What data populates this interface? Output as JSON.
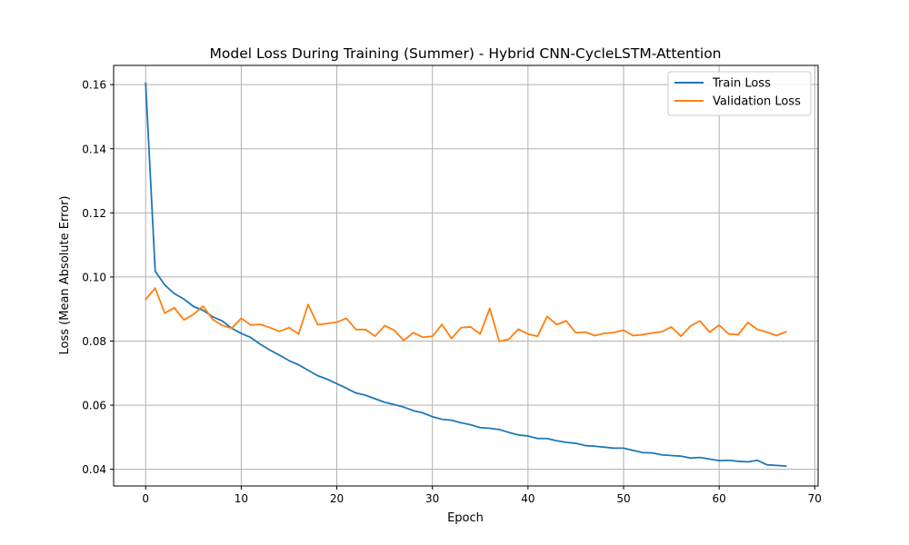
{
  "chart_data": {
    "type": "line",
    "title": "Model Loss During Training (Summer) - Hybrid CNN-CycleLSTM-Attention",
    "xlabel": "Epoch",
    "ylabel": "Loss (Mean Absolute Error)",
    "xlim": [
      -3.35,
      70.35
    ],
    "ylim": [
      0.0348,
      0.166
    ],
    "xticks": [
      0,
      10,
      20,
      30,
      40,
      50,
      60,
      70
    ],
    "xtick_labels": [
      "0",
      "10",
      "20",
      "30",
      "40",
      "50",
      "60",
      "70"
    ],
    "yticks": [
      0.04,
      0.06,
      0.08,
      0.1,
      0.12,
      0.14,
      0.16
    ],
    "ytick_labels": [
      "0.04",
      "0.06",
      "0.08",
      "0.10",
      "0.12",
      "0.14",
      "0.16"
    ],
    "grid": true,
    "legend_position": "top-right",
    "series": [
      {
        "name": "Train Loss",
        "color": "#1f77b4",
        "values": [
          0.1605,
          0.1018,
          0.0975,
          0.0948,
          0.0931,
          0.0908,
          0.0896,
          0.0876,
          0.0863,
          0.084,
          0.0824,
          0.0811,
          0.079,
          0.0772,
          0.0756,
          0.0739,
          0.0726,
          0.0709,
          0.0692,
          0.0681,
          0.0667,
          0.0653,
          0.0638,
          0.0631,
          0.062,
          0.0609,
          0.0602,
          0.0594,
          0.0583,
          0.0576,
          0.0564,
          0.0556,
          0.0553,
          0.0545,
          0.0539,
          0.053,
          0.0528,
          0.0524,
          0.0515,
          0.0507,
          0.0504,
          0.0496,
          0.0496,
          0.0489,
          0.0484,
          0.0481,
          0.0474,
          0.0472,
          0.0469,
          0.0466,
          0.0466,
          0.0459,
          0.0452,
          0.0451,
          0.0445,
          0.0443,
          0.0441,
          0.0435,
          0.0437,
          0.0432,
          0.0427,
          0.0428,
          0.0425,
          0.0423,
          0.0428,
          0.0414,
          0.0412,
          0.041
        ]
      },
      {
        "name": "Validation Loss",
        "color": "#ff7f0e",
        "values": [
          0.093,
          0.0965,
          0.0887,
          0.0904,
          0.0866,
          0.0883,
          0.0909,
          0.0868,
          0.0849,
          0.084,
          0.0871,
          0.085,
          0.0852,
          0.0842,
          0.083,
          0.0842,
          0.0822,
          0.0914,
          0.0851,
          0.0855,
          0.0859,
          0.0871,
          0.0836,
          0.0836,
          0.0815,
          0.0848,
          0.0834,
          0.0802,
          0.0826,
          0.0812,
          0.0815,
          0.0852,
          0.0808,
          0.0842,
          0.0844,
          0.0822,
          0.0902,
          0.0799,
          0.0806,
          0.0837,
          0.0822,
          0.0815,
          0.0877,
          0.0851,
          0.0863,
          0.0826,
          0.0828,
          0.0817,
          0.0824,
          0.0827,
          0.0834,
          0.0817,
          0.082,
          0.0825,
          0.0829,
          0.0844,
          0.0815,
          0.0847,
          0.0863,
          0.0828,
          0.085,
          0.0822,
          0.082,
          0.0858,
          0.0836,
          0.0828,
          0.0817,
          0.0829
        ]
      }
    ]
  }
}
